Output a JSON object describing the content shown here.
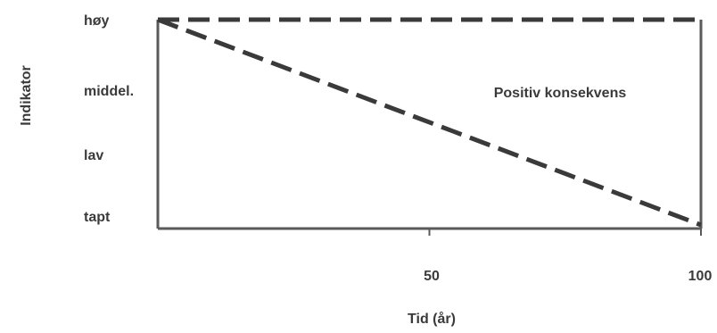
{
  "chart_data": {
    "type": "line",
    "title": "",
    "xlabel": "Tid (år)",
    "ylabel": "Indikator",
    "x_ticks": [
      "50",
      "100"
    ],
    "xlim": [
      0,
      100
    ],
    "y_categories": [
      "tapt",
      "lav",
      "middel.",
      "høy"
    ],
    "ylim": [
      0,
      3
    ],
    "grid": false,
    "annotation": "Positiv konsekvens",
    "series": [
      {
        "x": [
          0,
          100
        ],
        "y": [
          3,
          3
        ],
        "style": "dashed"
      },
      {
        "x": [
          0,
          100
        ],
        "y": [
          3,
          0
        ],
        "style": "dashed"
      }
    ],
    "colors": {
      "line": "#3a3a3a",
      "axis": "#5a5a5a"
    }
  }
}
